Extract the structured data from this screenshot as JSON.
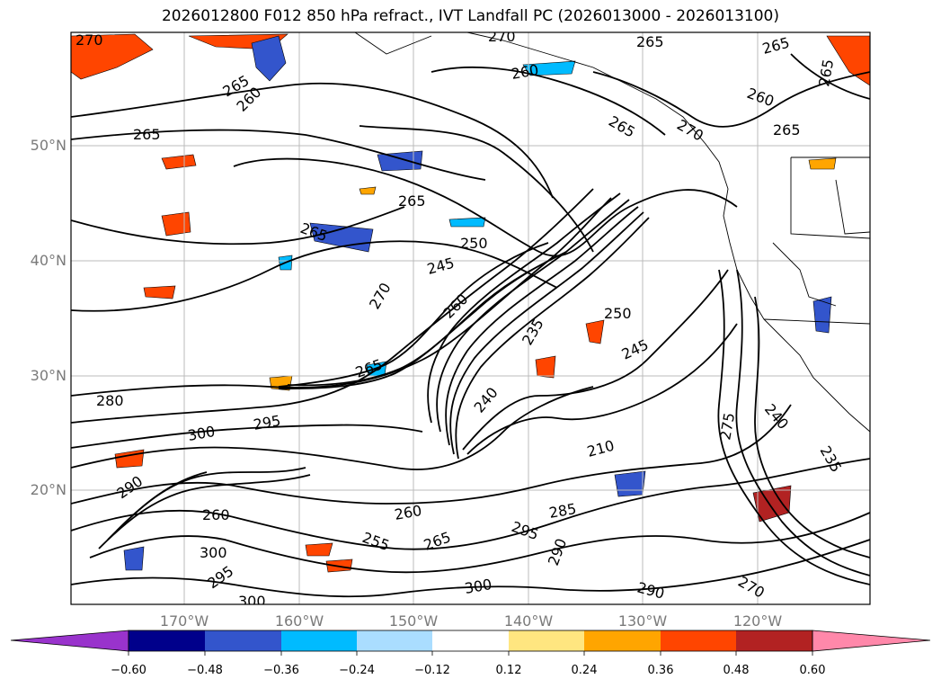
{
  "title": "2026012800 F012 850 hPa refract., IVT Landfall PC (2026013000 - 2026013100)",
  "lat_labels": [
    "50°N",
    "40°N",
    "30°N",
    "20°N"
  ],
  "lon_labels": [
    "170°W",
    "160°W",
    "150°W",
    "140°W",
    "130°W",
    "120°W"
  ],
  "colorbar": {
    "ticks": [
      "−0.60",
      "−0.48",
      "−0.36",
      "−0.24",
      "−0.12",
      "0.12",
      "0.24",
      "0.36",
      "0.48",
      "0.60"
    ],
    "colors": [
      "#9933cc",
      "#00008b",
      "#3355cc",
      "#00bbff",
      "#aaddff",
      "#ffffff",
      "#ffe680",
      "#ffa500",
      "#ff4500",
      "#b22222",
      "#ff88aa"
    ]
  },
  "contour_labels": [
    "270",
    "265",
    "260",
    "265",
    "270",
    "265",
    "260",
    "265",
    "265",
    "260",
    "265",
    "270",
    "265",
    "265",
    "265",
    "250",
    "245",
    "270",
    "260",
    "235",
    "250",
    "245",
    "265",
    "280",
    "295",
    "300",
    "290",
    "260",
    "260",
    "285",
    "295",
    "255",
    "265",
    "300",
    "295",
    "300",
    "300",
    "290",
    "290",
    "270",
    "240",
    "235",
    "275",
    "240",
    "210"
  ]
}
